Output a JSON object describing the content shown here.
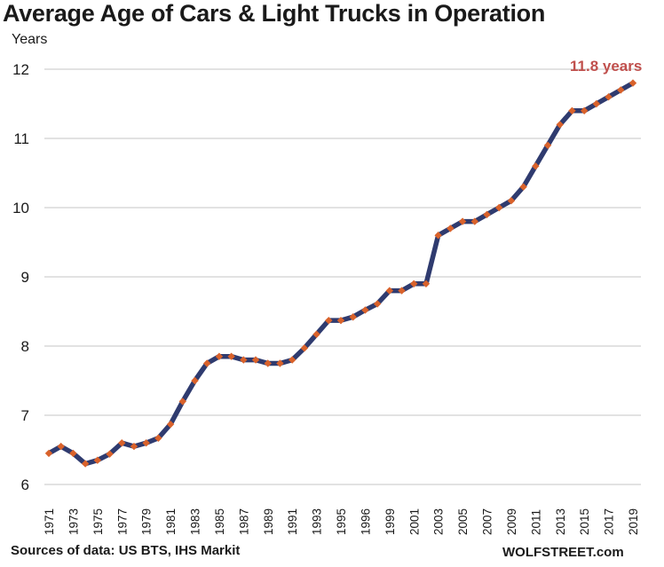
{
  "chart_data": {
    "type": "line",
    "title": "Average Age of Cars & Light Trucks in Operation",
    "xlabel": "",
    "ylabel": "Years",
    "ylim": [
      6,
      12
    ],
    "yticks": [
      6,
      7,
      8,
      9,
      10,
      11,
      12
    ],
    "grid": true,
    "legend": "none",
    "x_tick_labels": [
      "1971",
      "",
      "1973",
      "",
      "1975",
      "",
      "1977",
      "",
      "1979",
      "",
      "1981",
      "",
      "1983",
      "",
      "1985",
      "",
      "1987",
      "",
      "1989",
      "",
      "1991",
      "",
      "1993",
      "",
      "1995",
      "",
      "1996",
      "",
      "1999",
      "",
      "2001",
      "",
      "2003",
      "",
      "2005",
      "",
      "2007",
      "",
      "2009",
      "",
      "2011",
      "",
      "2013",
      "",
      "2015",
      "",
      "2017",
      "",
      "2019"
    ],
    "series": [
      {
        "name": "Average age (years)",
        "line_color": "#2f3b6f",
        "marker_color": "#d9622b",
        "values": [
          6.45,
          6.55,
          6.45,
          6.3,
          6.35,
          6.44,
          6.6,
          6.55,
          6.6,
          6.67,
          6.87,
          7.2,
          7.5,
          7.75,
          7.85,
          7.85,
          7.8,
          7.8,
          7.75,
          7.75,
          7.8,
          7.97,
          8.17,
          8.37,
          8.37,
          8.42,
          8.52,
          8.61,
          8.8,
          8.8,
          8.9,
          8.9,
          9.6,
          9.7,
          9.8,
          9.8,
          9.9,
          10.0,
          10.1,
          10.3,
          10.6,
          10.9,
          11.2,
          11.4,
          11.4,
          11.5,
          11.6,
          11.7,
          11.8
        ]
      }
    ],
    "annotations": [
      {
        "text": "11.8 years",
        "target": "last-point",
        "color": "#c0504d"
      }
    ]
  },
  "footer": {
    "source": "Sources of data: US BTS, IHS Markit",
    "brand": "WOLFSTREET.com"
  }
}
